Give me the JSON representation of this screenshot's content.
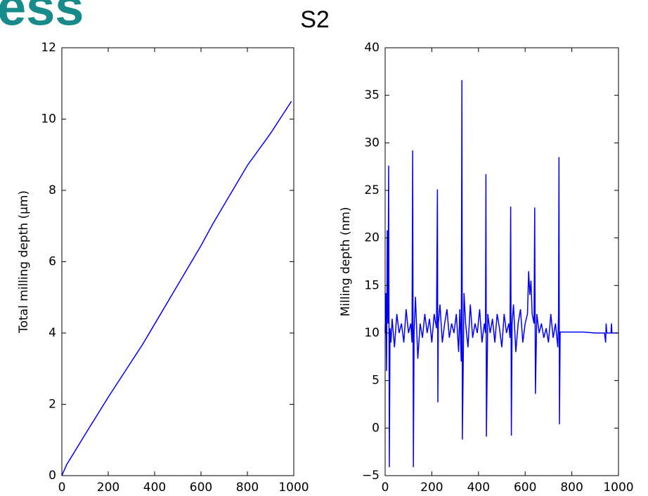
{
  "heading": "ess",
  "title": "S2",
  "chart_data": [
    {
      "type": "line",
      "ylabel": "Total milling depth (μm)",
      "xlim": [
        0,
        1000
      ],
      "xticks": [
        0,
        200,
        400,
        600,
        800,
        1000
      ],
      "ylim": [
        0,
        12
      ],
      "yticks": [
        0,
        2,
        4,
        6,
        8,
        10,
        12
      ],
      "series": [
        {
          "color": "#0000ff",
          "x": [
            0,
            20,
            100,
            200,
            300,
            350,
            400,
            500,
            600,
            650,
            700,
            800,
            900,
            990
          ],
          "values": [
            0,
            0.3,
            1.15,
            2.2,
            3.2,
            3.7,
            4.25,
            5.35,
            6.45,
            7.05,
            7.6,
            8.7,
            9.6,
            10.5
          ]
        }
      ]
    },
    {
      "type": "line",
      "ylabel": "Milling depth (nm)",
      "xlim": [
        0,
        1000
      ],
      "xticks": [
        0,
        200,
        400,
        600,
        800,
        1000
      ],
      "ylim": [
        -5,
        40
      ],
      "yticks": [
        {
          "value": -5,
          "label": "−5"
        },
        0,
        5,
        10,
        15,
        20,
        25,
        30,
        35,
        40
      ],
      "series": [
        {
          "color": "#0000ff",
          "x": [
            0,
            3,
            6,
            9,
            12,
            15,
            18,
            21,
            25,
            30,
            40,
            50,
            60,
            70,
            80,
            90,
            100,
            110,
            115,
            118,
            121,
            124,
            130,
            140,
            150,
            160,
            170,
            180,
            190,
            200,
            210,
            220,
            224,
            226,
            228,
            235,
            245,
            255,
            265,
            275,
            285,
            295,
            305,
            315,
            320,
            326,
            329,
            331,
            334,
            338,
            345,
            355,
            365,
            375,
            385,
            395,
            405,
            415,
            425,
            430,
            432,
            434,
            440,
            450,
            460,
            470,
            480,
            490,
            500,
            510,
            520,
            530,
            535,
            538,
            541,
            544,
            550,
            560,
            570,
            580,
            590,
            600,
            610,
            615,
            620,
            625,
            630,
            638,
            641,
            644,
            650,
            660,
            670,
            680,
            690,
            700,
            710,
            720,
            730,
            740,
            743,
            745,
            747,
            750,
            800,
            850,
            900,
            940,
            945,
            947,
            950,
            960,
            968,
            970,
            972,
            980,
            990,
            1000
          ],
          "values": [
            10,
            14.2,
            6,
            20.8,
            11,
            27.6,
            -4.1,
            10.5,
            9,
            11.5,
            8.5,
            12,
            10,
            11,
            9,
            12.5,
            10,
            11,
            9,
            29.2,
            -4.1,
            10,
            13.8,
            7.3,
            11,
            9.5,
            12,
            10,
            11.5,
            9,
            12,
            10.5,
            25.1,
            2.7,
            11,
            13,
            9,
            11,
            12.5,
            9.5,
            11,
            10,
            12,
            8,
            12.5,
            7,
            36.6,
            -1.2,
            5.2,
            14.2,
            11,
            8.5,
            13,
            9.5,
            11,
            10,
            12.5,
            9,
            11,
            10,
            26.7,
            -0.9,
            12,
            10,
            11.5,
            9,
            12,
            10.5,
            8.5,
            12,
            10,
            11,
            9.5,
            23.3,
            -0.8,
            11,
            13,
            8,
            11,
            12.5,
            9,
            11,
            12,
            16.5,
            14,
            15.5,
            12,
            11,
            23.2,
            3.6,
            12,
            10,
            11,
            9.5,
            10.5,
            9,
            12,
            9.5,
            11,
            8.5,
            12,
            28.5,
            0.4,
            10.1,
            10.1,
            10.1,
            10,
            10,
            9,
            11,
            10,
            10,
            10,
            11,
            10,
            10,
            10,
            10
          ]
        }
      ]
    }
  ]
}
